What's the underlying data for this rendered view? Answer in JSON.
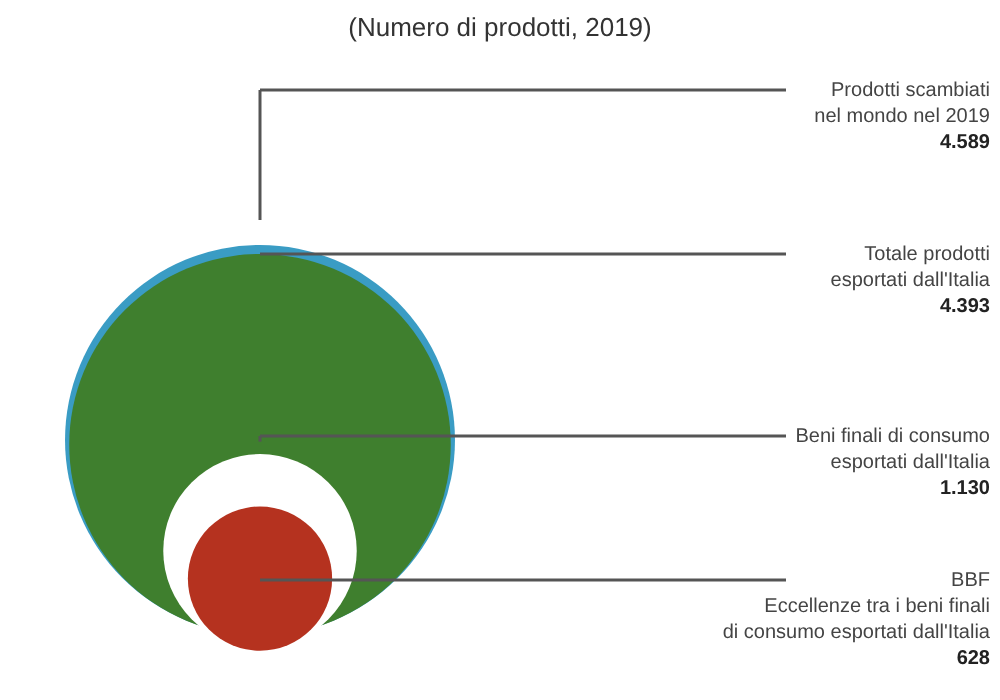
{
  "chart_data": {
    "type": "other",
    "title": "(Numero di prodotti, 2019)",
    "categories": [
      "Prodotti scambiati\nnel mondo nel 2019",
      "Totale prodotti\nesportati dall'Italia",
      "Beni finali di consumo\nesportati dall'Italia",
      "BBF\nEccellenze tra i beni finali\ndi consumo esportati dall'Italia"
    ],
    "values": [
      4589,
      4393,
      1130,
      628
    ],
    "value_labels": [
      "4.589",
      "4.393",
      "1.130",
      "628"
    ],
    "colors": [
      "#3a9cc4",
      "#3f7f2e",
      "#ffffff",
      "#b5321f"
    ]
  }
}
